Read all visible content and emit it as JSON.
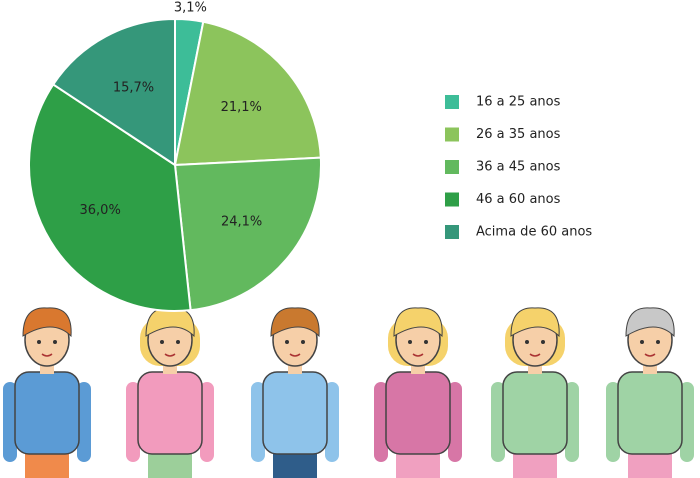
{
  "chart_data": {
    "type": "pie",
    "categories": [
      "16 a 25 anos",
      "26 a 35 anos",
      "36 a 45 anos",
      "46 a 60 anos",
      "Acima de 60 anos"
    ],
    "values": [
      3.1,
      21.1,
      24.1,
      36.0,
      15.7
    ],
    "value_labels": [
      "3,1%",
      "21,1%",
      "24,1%",
      "36,0%",
      "15,7%"
    ],
    "colors": [
      "#3dbd98",
      "#8cc45c",
      "#62b95e",
      "#2e9f47",
      "#35977a"
    ]
  }
}
